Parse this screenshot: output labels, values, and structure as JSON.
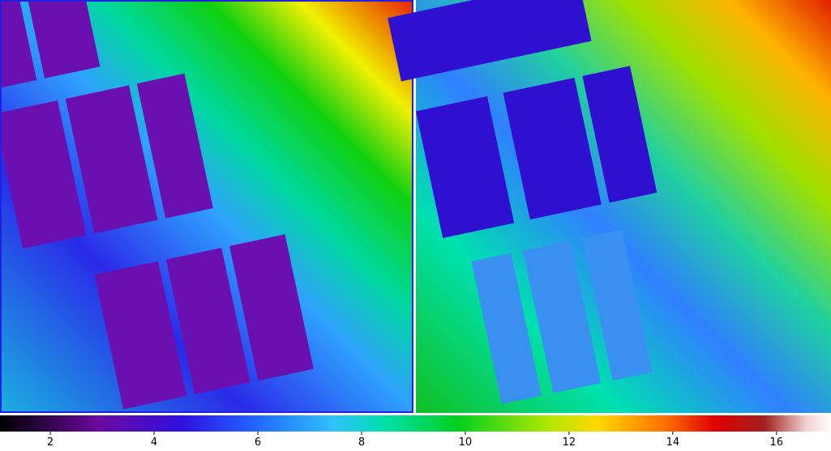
{
  "colorbar": {
    "range": [
      1.03,
      17.05
    ],
    "ticks": [
      2,
      4,
      6,
      8,
      10,
      12,
      14,
      16
    ]
  }
}
